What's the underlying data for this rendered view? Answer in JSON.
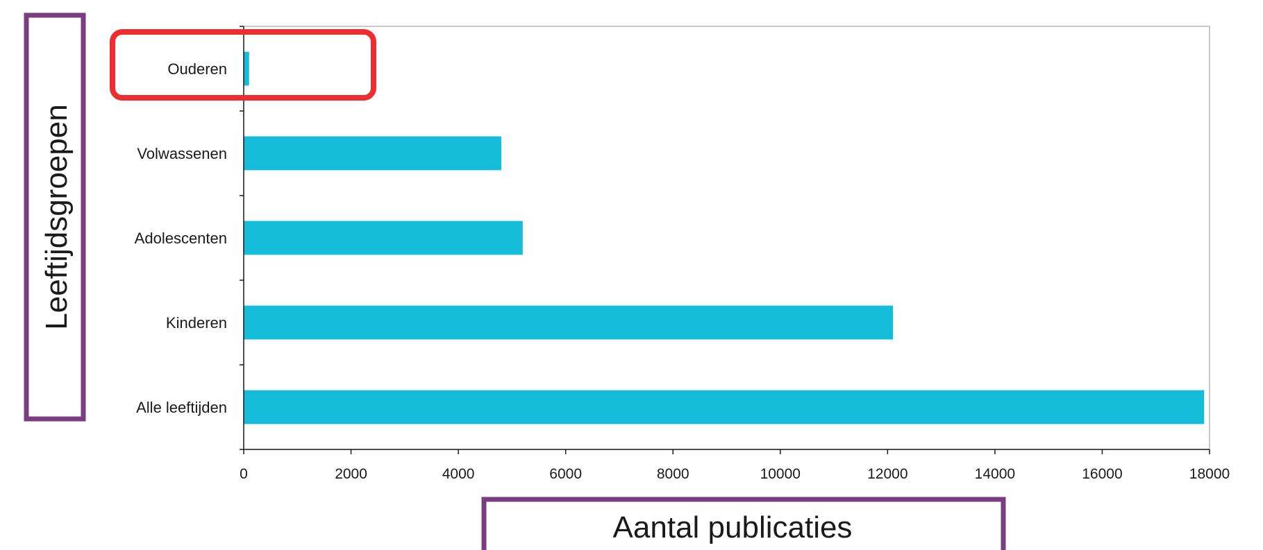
{
  "chart_data": {
    "type": "bar",
    "orientation": "horizontal",
    "categories": [
      "Ouderen",
      "Volwassenen",
      "Adolescenten",
      "Kinderen",
      "Alle leeftijden"
    ],
    "values": [
      100,
      4800,
      5200,
      12100,
      17900
    ],
    "xlabel": "Aantal publicaties",
    "ylabel": "Leeftijdsgroepen",
    "xlim": [
      0,
      18000
    ],
    "xticks": [
      "0",
      "2000",
      "4000",
      "6000",
      "8000",
      "10000",
      "12000",
      "14000",
      "16000",
      "18000"
    ],
    "grid": false,
    "legend": "none",
    "highlighted_category": "Ouderen"
  },
  "colors": {
    "bar": "#14BCDA",
    "highlight_box": "#EE2E2E",
    "title_box": "#7A3E80",
    "axis": "#1a1a1a",
    "plot_border": "#a6a6a6"
  }
}
